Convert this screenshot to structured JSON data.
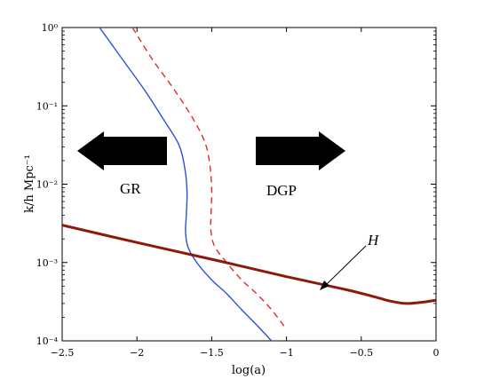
{
  "chart_data": {
    "type": "line",
    "xlabel": "log(a)",
    "ylabel": "k/h Mpc⁻¹",
    "xlim": [
      -2.5,
      0
    ],
    "ylim": [
      0.0001,
      1
    ],
    "y_scale": "log",
    "grid": false,
    "x_ticks": [
      "−2.5",
      "−2",
      "−1.5",
      "−1",
      "−0.5",
      "0"
    ],
    "x_tick_values": [
      -2.5,
      -2,
      -1.5,
      -1,
      -0.5,
      0
    ],
    "y_ticks": [
      "10⁻⁴",
      "10⁻³",
      "10⁻²",
      "10⁻¹",
      "10⁰"
    ],
    "y_tick_values": [
      0.0001,
      0.001,
      0.01,
      0.1,
      1
    ],
    "series": [
      {
        "color": "#2b4fe0",
        "style": "solid",
        "x": [
          -2.25,
          -2.1,
          -1.95,
          -1.82,
          -1.72,
          -1.68,
          -1.665,
          -1.67,
          -1.675,
          -1.66,
          -1.6,
          -1.5,
          -1.4,
          -1.3,
          -1.2,
          -1.1
        ],
        "y": [
          1.0,
          0.4,
          0.16,
          0.066,
          0.032,
          0.016,
          0.008,
          0.004,
          0.0025,
          0.0016,
          0.001,
          0.0006,
          0.0004,
          0.00025,
          0.00016,
          0.0001
        ]
      },
      {
        "color": "#e8262a",
        "style": "dashed",
        "x": [
          -2.03,
          -1.9,
          -1.75,
          -1.62,
          -1.54,
          -1.51,
          -1.5,
          -1.505,
          -1.505,
          -1.48,
          -1.4,
          -1.3,
          -1.2,
          -1.1,
          -1.0
        ],
        "y": [
          1.0,
          0.4,
          0.16,
          0.066,
          0.032,
          0.016,
          0.008,
          0.004,
          0.0025,
          0.0016,
          0.001,
          0.0006,
          0.0004,
          0.00025,
          0.00014
        ]
      },
      {
        "color": "#8b1a0a",
        "style": "solid-thick",
        "x": [
          -2.5,
          -2.0,
          -1.5,
          -1.0,
          -0.6,
          -0.4,
          -0.3,
          -0.2,
          -0.1,
          0.0
        ],
        "y": [
          0.003,
          0.0018,
          0.0011,
          0.00066,
          0.00045,
          0.00036,
          0.00032,
          0.0003,
          0.00031,
          0.00033
        ]
      }
    ],
    "annotations": {
      "gr_text": "GR",
      "dgp_text": "DGP",
      "h_text": "H"
    }
  }
}
